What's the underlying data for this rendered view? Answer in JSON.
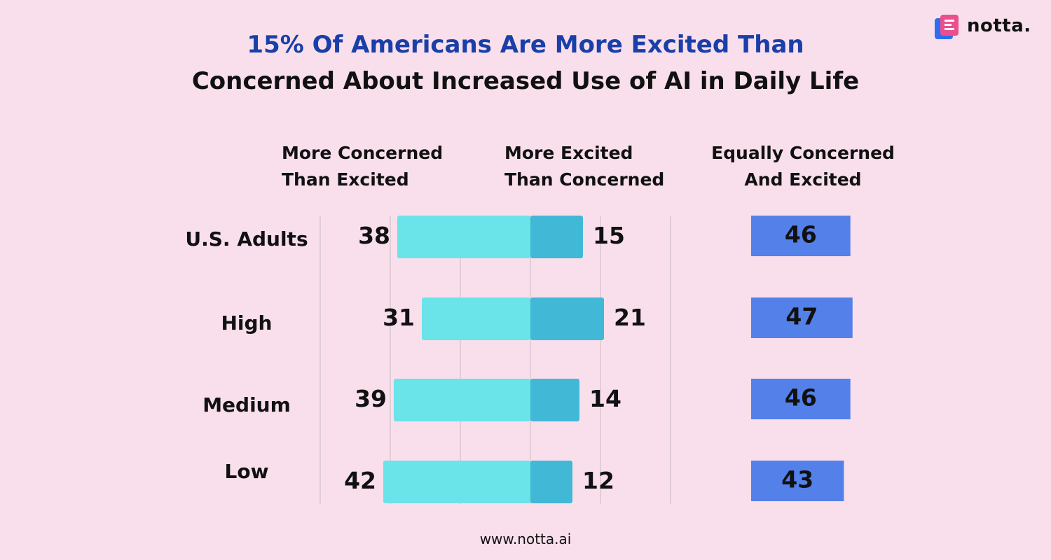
{
  "chart_data": {
    "type": "bar",
    "title_line1": "15% Of Americans Are More Excited Than",
    "title_line2": "Concerned About Increased Use of AI in Daily Life",
    "column_headers": {
      "concerned": [
        "More Concerned",
        "Than Excited"
      ],
      "excited": [
        "More Excited",
        "Than Concerned"
      ],
      "equally": [
        "Equally Concerned",
        "And Excited"
      ]
    },
    "categories": [
      "U.S. Adults",
      "High",
      "Medium",
      "Low"
    ],
    "series": [
      {
        "name": "More Concerned Than Excited",
        "values": [
          38,
          31,
          39,
          42
        ],
        "color": "#6ae3e9"
      },
      {
        "name": "More Excited Than Concerned",
        "values": [
          15,
          21,
          14,
          12
        ],
        "color": "#41b8d6"
      },
      {
        "name": "Equally Concerned And Excited",
        "values": [
          46,
          47,
          46,
          43
        ],
        "color": "#5480ea"
      }
    ]
  },
  "brand": {
    "name": "notta.",
    "accent": "#ec4f8d",
    "accent2": "#2f6df0"
  },
  "footer": {
    "url": "www.notta.ai"
  },
  "colors": {
    "background": "#f9dfec",
    "grid": "#d9c7d2",
    "title_accent": "#1a3fa8"
  }
}
